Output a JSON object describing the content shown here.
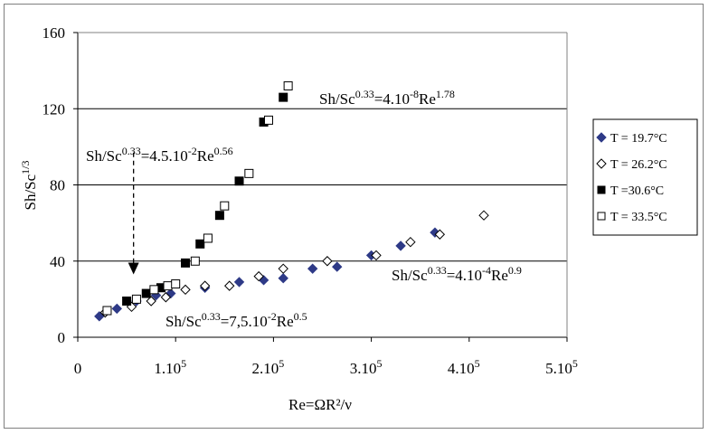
{
  "chart_data": {
    "type": "scatter",
    "xlabel": "Re=ΩR²/ν",
    "ylabel": "Sh/Sc^1/3",
    "xlim": [
      0,
      500000
    ],
    "ylim": [
      0,
      160
    ],
    "x_ticks": [
      {
        "value": 0,
        "base": "0",
        "sup": ""
      },
      {
        "value": 100000,
        "base": "1.10",
        "sup": "5"
      },
      {
        "value": 200000,
        "base": "2.10",
        "sup": "5"
      },
      {
        "value": 300000,
        "base": "3.10",
        "sup": "5"
      },
      {
        "value": 400000,
        "base": "4.10",
        "sup": "5"
      },
      {
        "value": 500000,
        "base": "5.10",
        "sup": "5"
      }
    ],
    "y_ticks": [
      0,
      40,
      80,
      120,
      160
    ],
    "grid": "horizontal",
    "legend_position": "right",
    "series": [
      {
        "name": "T = 19.7°C",
        "marker": "diamond-filled",
        "color": "#2e3a87",
        "x": [
          22000,
          40000,
          60000,
          80000,
          95000,
          130000,
          165000,
          190000,
          210000,
          240000,
          265000,
          300000,
          330000,
          365000
        ],
        "y": [
          11,
          15,
          19,
          22,
          23,
          26,
          29,
          30,
          31,
          36,
          37,
          43,
          48,
          55
        ]
      },
      {
        "name": "T = 26.2°C",
        "marker": "diamond-open",
        "color": "#000000",
        "x": [
          28000,
          55000,
          75000,
          90000,
          110000,
          130000,
          155000,
          185000,
          210000,
          255000,
          305000,
          340000,
          370000,
          415000
        ],
        "y": [
          13,
          16,
          19,
          21,
          25,
          27,
          27,
          32,
          36,
          40,
          43,
          50,
          54,
          64
        ]
      },
      {
        "name": "T =30.6°C",
        "marker": "square-filled",
        "color": "#000000",
        "x": [
          50000,
          70000,
          85000,
          110000,
          125000,
          145000,
          165000,
          190000,
          210000
        ],
        "y": [
          19,
          23,
          26,
          39,
          49,
          64,
          82,
          113,
          126
        ]
      },
      {
        "name": "T = 33.5°C",
        "marker": "square-open",
        "color": "#000000",
        "x": [
          30000,
          60000,
          78000,
          92000,
          100000,
          120000,
          133000,
          150000,
          175000,
          195000,
          215000
        ],
        "y": [
          14,
          20,
          25,
          27,
          28,
          40,
          52,
          69,
          86,
          114,
          132
        ]
      }
    ],
    "annotations": [
      {
        "id": "ann1",
        "base": "Sh/Sc",
        "sup1": "0.33",
        "mid": "=4.10",
        "sup2": "-8",
        "mid2": "Re",
        "sup3": "1.78"
      },
      {
        "id": "ann2",
        "base": "Sh/Sc",
        "sup1": "0.33",
        "mid": "=4.5.10",
        "sup2": "-2",
        "mid2": "Re",
        "sup3": "0.56"
      },
      {
        "id": "ann3",
        "base": "Sh/Sc",
        "sup1": "0.33",
        "mid": "=4.10",
        "sup2": "-4",
        "mid2": "Re",
        "sup3": "0.9"
      },
      {
        "id": "ann4",
        "base": "Sh/Sc",
        "sup1": "0.33",
        "mid": "=7,5.10",
        "sup2": "-2",
        "mid2": "Re",
        "sup3": "0.5"
      }
    ],
    "arrow": {
      "x": 57000,
      "y_from": 97,
      "y_to": 33
    }
  }
}
